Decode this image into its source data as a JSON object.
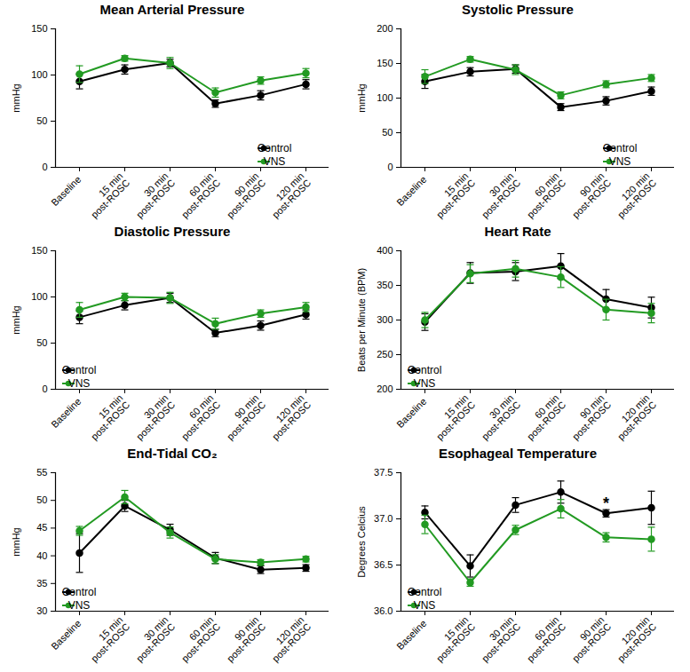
{
  "chart_data": [
    {
      "type": "line",
      "title": "Mean Arterial Pressure",
      "ylabel": "mmHg",
      "categories": [
        "Baseline",
        "15 min\npost-ROSC",
        "30 min\npost-ROSC",
        "60 min\npost-ROSC",
        "90 min\npost-ROSC",
        "120 min\npost-ROSC"
      ],
      "series": [
        {
          "name": "Control",
          "color": "#000000",
          "marker": "circle",
          "values": [
            93,
            106,
            113,
            69,
            78,
            90
          ],
          "errors": [
            8,
            5,
            4,
            4,
            5,
            5
          ]
        },
        {
          "name": "VNS",
          "color": "#229a22",
          "marker": "circle",
          "values": [
            101,
            118,
            113,
            81,
            94,
            102
          ],
          "errors": [
            9,
            3,
            6,
            5,
            4,
            5
          ]
        }
      ],
      "ylim": [
        0,
        150
      ],
      "yticks": [
        0,
        50,
        100,
        150
      ],
      "legend": "bottom-right"
    },
    {
      "type": "line",
      "title": "Systolic Pressure",
      "ylabel": "mmHg",
      "categories": [
        "Baseline",
        "15 min\npost-ROSC",
        "30 min\npost-ROSC",
        "60 min\npost-ROSC",
        "90 min\npost-ROSC",
        "120 min\npost-ROSC"
      ],
      "series": [
        {
          "name": "Control",
          "color": "#000000",
          "marker": "circle",
          "values": [
            124,
            138,
            142,
            87,
            96,
            110
          ],
          "errors": [
            10,
            6,
            6,
            5,
            6,
            6
          ]
        },
        {
          "name": "VNS",
          "color": "#229a22",
          "marker": "circle",
          "values": [
            131,
            156,
            141,
            104,
            120,
            129
          ],
          "errors": [
            10,
            4,
            7,
            5,
            5,
            5
          ]
        }
      ],
      "ylim": [
        0,
        200
      ],
      "yticks": [
        0,
        50,
        100,
        150,
        200
      ],
      "legend": "bottom-right"
    },
    {
      "type": "line",
      "title": "Diastolic Pressure",
      "ylabel": "mmHg",
      "categories": [
        "Baseline",
        "15 min\npost-ROSC",
        "30 min\npost-ROSC",
        "60 min\npost-ROSC",
        "90 min\npost-ROSC",
        "120 min\npost-ROSC"
      ],
      "series": [
        {
          "name": "Control",
          "color": "#000000",
          "marker": "circle",
          "values": [
            78,
            91,
            99,
            61,
            69,
            81
          ],
          "errors": [
            7,
            5,
            5,
            4,
            5,
            5
          ]
        },
        {
          "name": "VNS",
          "color": "#229a22",
          "marker": "circle",
          "values": [
            86,
            100,
            99,
            71,
            82,
            89
          ],
          "errors": [
            8,
            4,
            6,
            6,
            4,
            5
          ]
        }
      ],
      "ylim": [
        0,
        150
      ],
      "yticks": [
        0,
        50,
        100,
        150
      ],
      "legend": "bottom-left"
    },
    {
      "type": "line",
      "title": "Heart Rate",
      "ylabel": "Beats per Minute (BPM)",
      "categories": [
        "Baseline",
        "15 min\npost-ROSC",
        "30 min\npost-ROSC",
        "60 min\npost-ROSC",
        "90 min\npost-ROSC",
        "120 min\npost-ROSC"
      ],
      "series": [
        {
          "name": "Control",
          "color": "#000000",
          "marker": "circle",
          "values": [
            297,
            368,
            370,
            378,
            330,
            318
          ],
          "errors": [
            12,
            15,
            13,
            18,
            14,
            15
          ]
        },
        {
          "name": "VNS",
          "color": "#229a22",
          "marker": "circle",
          "values": [
            300,
            367,
            374,
            362,
            315,
            310
          ],
          "errors": [
            11,
            13,
            12,
            15,
            15,
            14
          ]
        }
      ],
      "ylim": [
        200,
        400
      ],
      "yticks": [
        200,
        250,
        300,
        350,
        400
      ],
      "legend": "bottom-left"
    },
    {
      "type": "line",
      "title": "End-Tidal CO₂",
      "ylabel": "mmHg",
      "categories": [
        "Baseline",
        "15 min\npost-ROSC",
        "30 min\npost-ROSC",
        "60 min\npost-ROSC",
        "90 min\npost-ROSC",
        "120 min\npost-ROSC"
      ],
      "series": [
        {
          "name": "Control",
          "color": "#000000",
          "marker": "circle",
          "values": [
            40.5,
            49,
            44.7,
            39.6,
            37.5,
            37.8
          ],
          "errors": [
            3.5,
            1,
            1,
            1,
            0.7,
            0.6
          ]
        },
        {
          "name": "VNS",
          "color": "#229a22",
          "marker": "circle",
          "values": [
            44.5,
            50.6,
            44.2,
            39.4,
            38.8,
            39.4
          ],
          "errors": [
            0.8,
            1.2,
            1,
            0.8,
            0.5,
            0.5
          ]
        }
      ],
      "ylim": [
        30,
        55
      ],
      "yticks": [
        30,
        35,
        40,
        45,
        50,
        55
      ],
      "legend": "bottom-left"
    },
    {
      "type": "line",
      "title": "Esophageal Temperature",
      "ylabel": "Degrees Celcius",
      "categories": [
        "Baseline",
        "15 min\npost-ROSC",
        "30 min\npost-ROSC",
        "60 min\npost-ROSC",
        "90 min\npost-ROSC",
        "120 min\npost-ROSC"
      ],
      "series": [
        {
          "name": "Control",
          "color": "#000000",
          "marker": "circle",
          "values": [
            37.07,
            36.49,
            37.15,
            37.29,
            37.06,
            37.12
          ],
          "errors": [
            0.07,
            0.12,
            0.08,
            0.12,
            0.04,
            0.18
          ]
        },
        {
          "name": "VNS",
          "color": "#229a22",
          "marker": "circle",
          "values": [
            36.94,
            36.31,
            36.88,
            37.11,
            36.8,
            36.78
          ],
          "errors": [
            0.1,
            0.04,
            0.05,
            0.1,
            0.05,
            0.13
          ]
        }
      ],
      "ylim": [
        36,
        37.5
      ],
      "yticks": [
        {
          "value": 36,
          "label": "36.0"
        },
        36.5,
        {
          "value": 37,
          "label": "37.0"
        },
        37.5
      ],
      "legend": "bottom-left",
      "annotations": [
        {
          "text": "*",
          "x": "90 min\npost-ROSC",
          "y": 37.17
        }
      ]
    }
  ]
}
